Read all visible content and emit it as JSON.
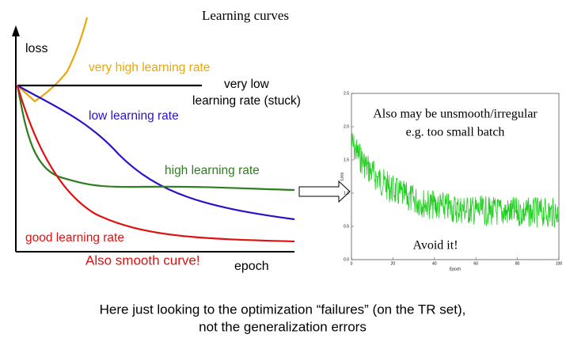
{
  "title": "Learning curves",
  "left_diagram": {
    "y_label": "loss",
    "x_label": "epoch",
    "curves": [
      {
        "label": "very high learning rate",
        "color": "#e8a70c"
      },
      {
        "label_lines": [
          "very  low",
          "learning rate (stuck)"
        ],
        "color": "#000000"
      },
      {
        "label": "low learning rate",
        "color": "#2a12c8"
      },
      {
        "label": "high learning rate",
        "color": "#2e7d1e"
      },
      {
        "label": "good learning rate",
        "color": "#e01010"
      }
    ],
    "note": "Also smooth curve!"
  },
  "inset": {
    "note_lines": [
      "Also may be unsmooth/irregular",
      "e.g. too small batch"
    ],
    "warning": "Avoid it!",
    "x_label": "Epoch",
    "y_label": "Loss",
    "xlim": [
      0,
      100
    ],
    "xticks": [
      0,
      20,
      40,
      60,
      80,
      100
    ],
    "ylim": [
      0,
      2.5
    ],
    "yticks": [
      {
        "value": 0,
        "label": "0.0"
      },
      0.5,
      {
        "value": 1,
        "label": "1.0"
      },
      1.5,
      {
        "value": 2,
        "label": "2.0"
      },
      2.5
    ],
    "color": "#22cc22"
  },
  "footer_lines": [
    "Here just looking to the optimization “failures” (on the TR set),",
    "not the generalization errors"
  ]
}
